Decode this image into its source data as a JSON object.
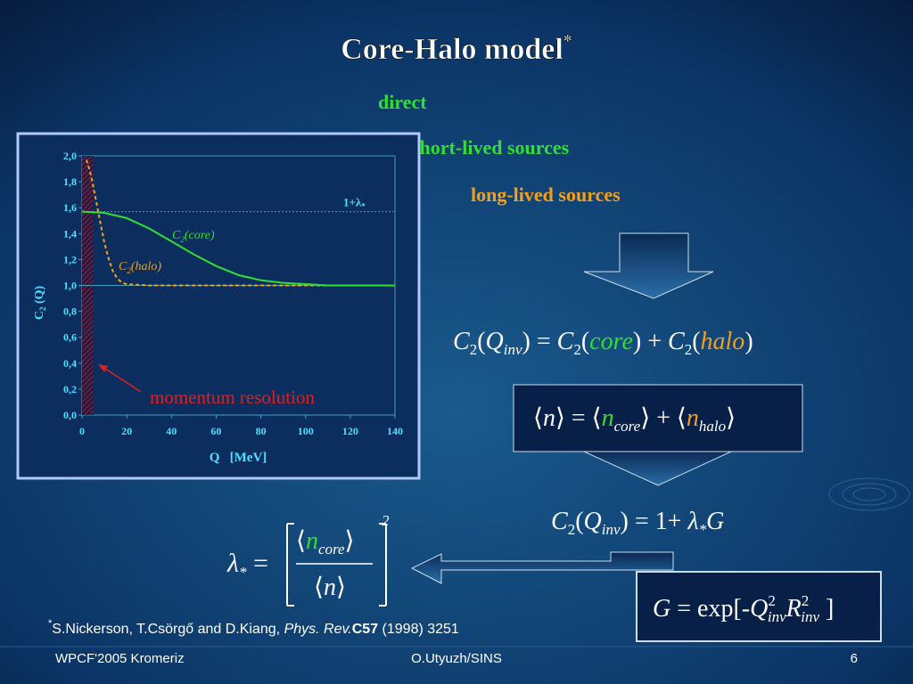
{
  "title": {
    "text": "Core-Halo model",
    "mark": "*"
  },
  "labels": {
    "direct": "direct",
    "short": "short-lived sources",
    "long": "long-lived sources"
  },
  "eq1": [
    "C",
    "2",
    "(",
    "Q",
    "inv",
    ") = ",
    "C",
    "2",
    "(",
    "core",
    ") + ",
    "C",
    "2",
    "(",
    "halo",
    ")"
  ],
  "eq2": [
    "n",
    " = ",
    "n",
    "core",
    " + ",
    "n",
    "halo"
  ],
  "eq3": [
    "C",
    "2",
    "(",
    "Q",
    "inv",
    ") = 1+ ",
    "λ",
    "*",
    "G"
  ],
  "eq4": [
    "G",
    " = exp[-",
    "Q",
    "2",
    "inv",
    "R",
    "2",
    "inv",
    " ]"
  ],
  "eq5": [
    "λ",
    "*",
    " = ",
    "n",
    "core",
    "n",
    "2"
  ],
  "footnote": {
    "mark": "*",
    "authors": "S.Nickerson, T.Csörgő and D.Kiang, ",
    "journal": "Phys. Rev.",
    "volume": "C57",
    "rest": " (1998) 3251"
  },
  "footer": {
    "left": "WPCF'2005 Kromeriz",
    "center": "O.Utyuzh/SINS",
    "right": "6"
  },
  "chart": {
    "xlim": [
      0,
      140
    ],
    "ylim": [
      0,
      2
    ],
    "xticks": [
      0,
      20,
      40,
      60,
      80,
      100,
      120,
      140
    ],
    "yticks": [
      {
        "value": 0,
        "label": "0,0"
      },
      {
        "value": 0.2,
        "label": "0,2"
      },
      {
        "value": 0.4,
        "label": "0,4"
      },
      {
        "value": 0.6,
        "label": "0,6"
      },
      {
        "value": 0.8,
        "label": "0,8"
      },
      {
        "value": 1,
        "label": "1,0"
      },
      {
        "value": 1.2,
        "label": "1,2"
      },
      {
        "value": 1.4,
        "label": "1,4"
      },
      {
        "value": 1.6,
        "label": "1,6"
      },
      {
        "value": 1.8,
        "label": "1,8"
      },
      {
        "value": 2,
        "label": "2,0"
      }
    ],
    "y_label": [
      "C",
      "2",
      " (Q)"
    ],
    "x_label": "Q   [MeV]",
    "lambda_line": {
      "value": 1.57,
      "label": [
        "1+λ",
        "*"
      ]
    },
    "baseline": 1,
    "resolution_band": [
      0,
      5
    ],
    "annotation": "momentum resolution",
    "core": {
      "label": [
        "C",
        "2",
        "(core)"
      ],
      "x": [
        0,
        10,
        20,
        30,
        40,
        50,
        60,
        70,
        80,
        90,
        100,
        110,
        120,
        130,
        140
      ],
      "values": [
        1.57,
        1.56,
        1.52,
        1.44,
        1.34,
        1.24,
        1.15,
        1.08,
        1.04,
        1.02,
        1.01,
        1,
        1,
        1,
        1
      ]
    },
    "halo": {
      "label": [
        "C",
        "2",
        "(halo)"
      ],
      "x": [
        2,
        4,
        6,
        8,
        10,
        12,
        14,
        16,
        18,
        20,
        30,
        40,
        140
      ],
      "values": [
        1.97,
        1.85,
        1.68,
        1.5,
        1.33,
        1.2,
        1.1,
        1.05,
        1.02,
        1.01,
        1,
        1,
        1
      ]
    }
  }
}
